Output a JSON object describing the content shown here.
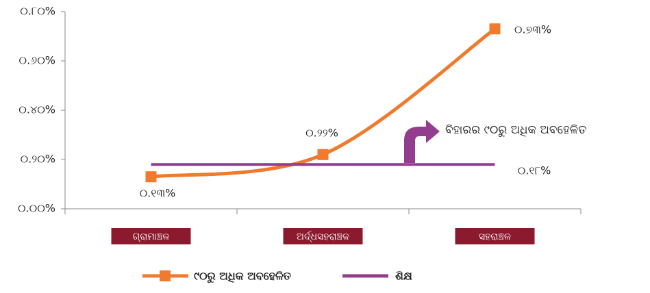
{
  "chart_data": {
    "type": "line",
    "categories": [
      "ଗ୍ରାମାଞ୍ଚଳ",
      "ଅର୍ଦ୍ଧସହରାଞ୍ଚଳ",
      "ସହରାଞ୍ଚଳ"
    ],
    "category_color": "#8b1a2e",
    "series": [
      {
        "name": "୯୦ରୁ ଅଧିକ ଅବହେଳିତ",
        "color": "#f07a2e",
        "values": [
          0.13,
          0.22,
          0.73
        ],
        "value_labels": [
          "୦.୧୩%",
          "୦.୨୨%",
          "୦.୭୩%"
        ]
      },
      {
        "name": "ଶିକ୍ଷ",
        "color": "#933d8f",
        "values": [
          0.18,
          0.18,
          0.18
        ],
        "value_labels": [
          null,
          null,
          "୦.୧୮%"
        ]
      }
    ],
    "ylim": [
      0,
      0.8
    ],
    "yticks": [
      {
        "value": 0,
        "label": "୦.୦୦%"
      },
      {
        "value": 0.2,
        "label": "୦.୨୦%"
      },
      {
        "value": 0.4,
        "label": "୦.୪୦%"
      },
      {
        "value": 0.6,
        "label": "୦.୬୦%"
      },
      {
        "value": 0.8,
        "label": "୦.୮୦%"
      }
    ],
    "annotation": "ବିହାରର ୯୦ରୁ ଅଧିକ ଅବହେଳିତ",
    "annotation_color": "#933d8f"
  }
}
